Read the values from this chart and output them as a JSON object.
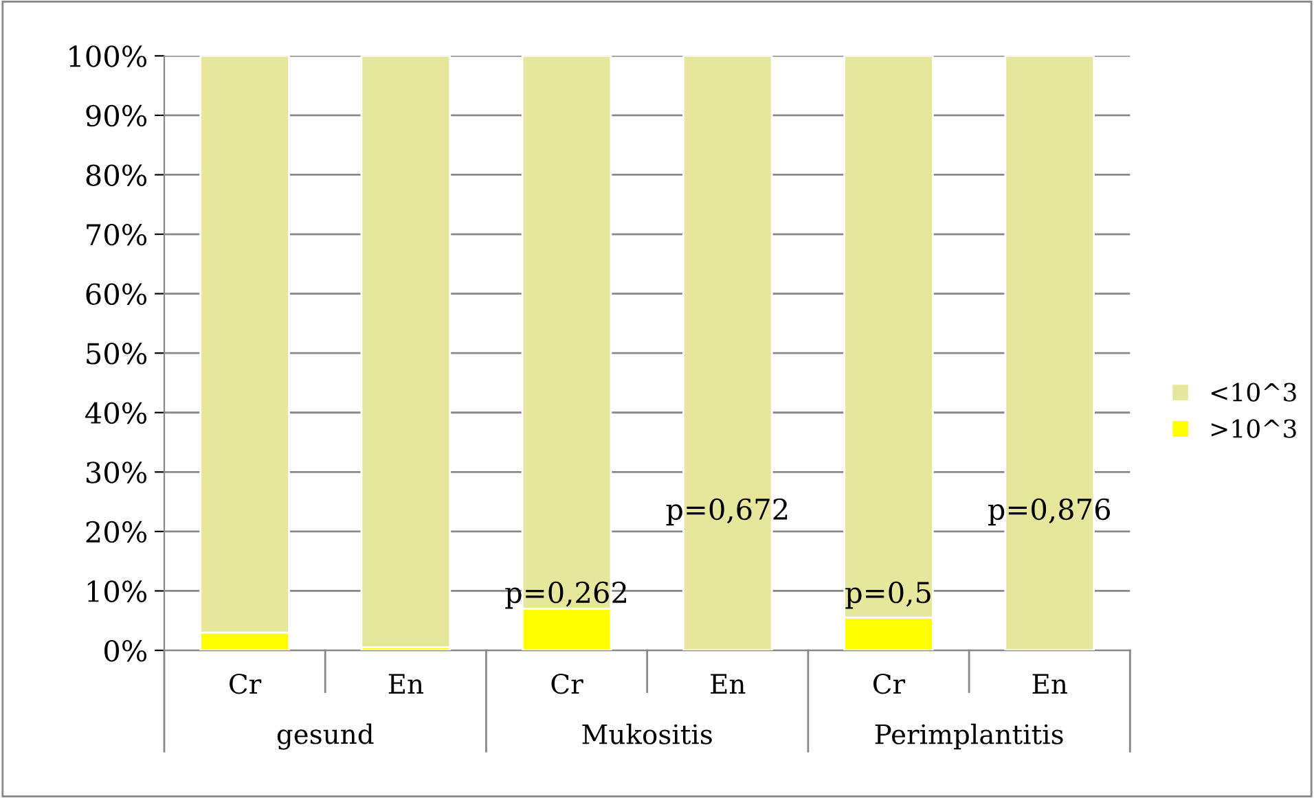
{
  "chart_data": {
    "type": "bar",
    "stacked": true,
    "categories": [
      "Cr",
      "En",
      "Cr",
      "En",
      "Cr",
      "En"
    ],
    "series": [
      {
        "name": ">10^3",
        "color": "#ffff00",
        "values": [
          3,
          0.5,
          7,
          0,
          5.5,
          0
        ]
      },
      {
        "name": "<10^3",
        "color": "#e6e69c",
        "values": [
          97,
          99.5,
          93,
          100,
          94.5,
          100
        ]
      }
    ],
    "annotations": [
      "gesund",
      "Mukositis",
      "Perimplantitis",
      "p=0,262",
      "p=0,672",
      "p=0,5",
      "p=0,876"
    ],
    "ylim": [
      0,
      100
    ],
    "yticks": [
      {
        "value": 0,
        "label": "0%"
      },
      {
        "value": 10,
        "label": "10%"
      },
      {
        "value": 20,
        "label": "20%"
      },
      {
        "value": 30,
        "label": "30%"
      },
      {
        "value": 40,
        "label": "40%"
      },
      {
        "value": 50,
        "label": "50%"
      },
      {
        "value": 60,
        "label": "60%"
      },
      {
        "value": 70,
        "label": "70%"
      },
      {
        "value": 80,
        "label": "80%"
      },
      {
        "value": 90,
        "label": "90%"
      },
      {
        "value": 100,
        "label": "100%"
      }
    ],
    "grid": "y",
    "legend": "right"
  }
}
